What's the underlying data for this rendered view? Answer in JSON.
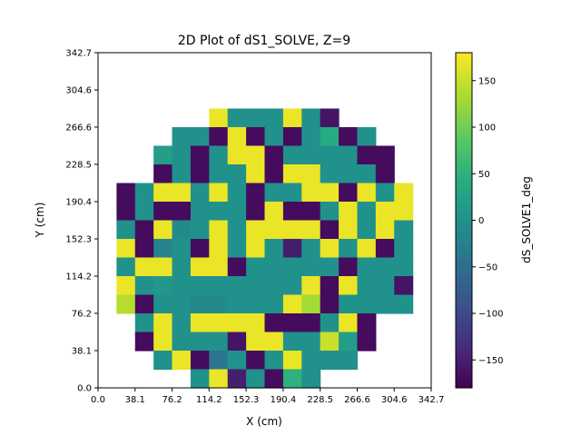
{
  "chart_data": {
    "type": "heatmap",
    "title": "2D Plot of dS1_SOLVE, Z=9",
    "xlabel": "X (cm)",
    "ylabel": "Y (cm)",
    "xlim": [
      0.0,
      342.7
    ],
    "ylim": [
      0.0,
      342.7
    ],
    "x_ticks": [
      "0.0",
      "38.1",
      "76.2",
      "114.2",
      "152.3",
      "190.4",
      "228.5",
      "266.6",
      "304.6",
      "342.7"
    ],
    "y_ticks": [
      "0.0",
      "38.1",
      "76.2",
      "114.2",
      "152.3",
      "190.4",
      "228.5",
      "266.6",
      "304.6",
      "342.7"
    ],
    "cell_size": 19.04,
    "colorbar": {
      "label": "dS_SOLVE1_deg",
      "colormap": "viridis",
      "range": [
        -180,
        180
      ],
      "ticks": [
        150,
        100,
        50,
        0,
        -50,
        -100,
        -150
      ],
      "tick_labels": [
        "150",
        "100",
        "50",
        "0",
        "−50",
        "−100",
        "−150"
      ]
    },
    "grid": false,
    "rows_top_to_bottom": [
      [
        null,
        null,
        null,
        null,
        null,
        null,
        170,
        0,
        0,
        0,
        170,
        0,
        -160,
        null,
        null,
        null,
        null
      ],
      [
        null,
        null,
        null,
        null,
        0,
        0,
        -170,
        170,
        -170,
        0,
        -170,
        0,
        40,
        -170,
        0,
        null,
        null
      ],
      [
        null,
        null,
        null,
        20,
        0,
        -170,
        0,
        170,
        170,
        -170,
        0,
        0,
        0,
        0,
        -170,
        -170,
        null
      ],
      [
        null,
        null,
        null,
        -170,
        0,
        -170,
        0,
        0,
        170,
        -170,
        170,
        170,
        0,
        0,
        0,
        -170,
        null
      ],
      [
        null,
        -170,
        0,
        170,
        170,
        0,
        170,
        0,
        -170,
        0,
        0,
        170,
        170,
        -170,
        170,
        0,
        170
      ],
      [
        null,
        -170,
        0,
        -170,
        -170,
        0,
        0,
        0,
        -170,
        170,
        -170,
        -170,
        0,
        170,
        0,
        170,
        170
      ],
      [
        null,
        0,
        -170,
        170,
        -10,
        0,
        170,
        0,
        170,
        170,
        170,
        170,
        -170,
        170,
        0,
        170,
        0
      ],
      [
        null,
        170,
        -170,
        -20,
        0,
        -170,
        170,
        0,
        170,
        0,
        -150,
        0,
        170,
        0,
        170,
        -170,
        0
      ],
      [
        null,
        0,
        170,
        170,
        0,
        170,
        170,
        -170,
        0,
        0,
        0,
        0,
        0,
        -170,
        0,
        0,
        0
      ],
      [
        null,
        170,
        0,
        10,
        0,
        0,
        0,
        0,
        0,
        0,
        0,
        170,
        -170,
        170,
        0,
        0,
        -160
      ],
      [
        null,
        140,
        -170,
        0,
        0,
        -10,
        -10,
        0,
        0,
        0,
        170,
        130,
        -170,
        0,
        0,
        0,
        0
      ],
      [
        null,
        null,
        0,
        170,
        0,
        170,
        170,
        170,
        170,
        -170,
        -170,
        -170,
        0,
        170,
        -170,
        null,
        null
      ],
      [
        null,
        null,
        -170,
        170,
        0,
        0,
        0,
        -160,
        170,
        170,
        0,
        0,
        150,
        20,
        -170,
        null,
        null
      ],
      [
        null,
        null,
        null,
        0,
        170,
        -170,
        -40,
        0,
        -170,
        0,
        170,
        0,
        0,
        0,
        null,
        null,
        null
      ],
      [
        null,
        null,
        null,
        null,
        null,
        0,
        170,
        -150,
        0,
        -170,
        50,
        0,
        null,
        null,
        null,
        null,
        null
      ]
    ]
  }
}
